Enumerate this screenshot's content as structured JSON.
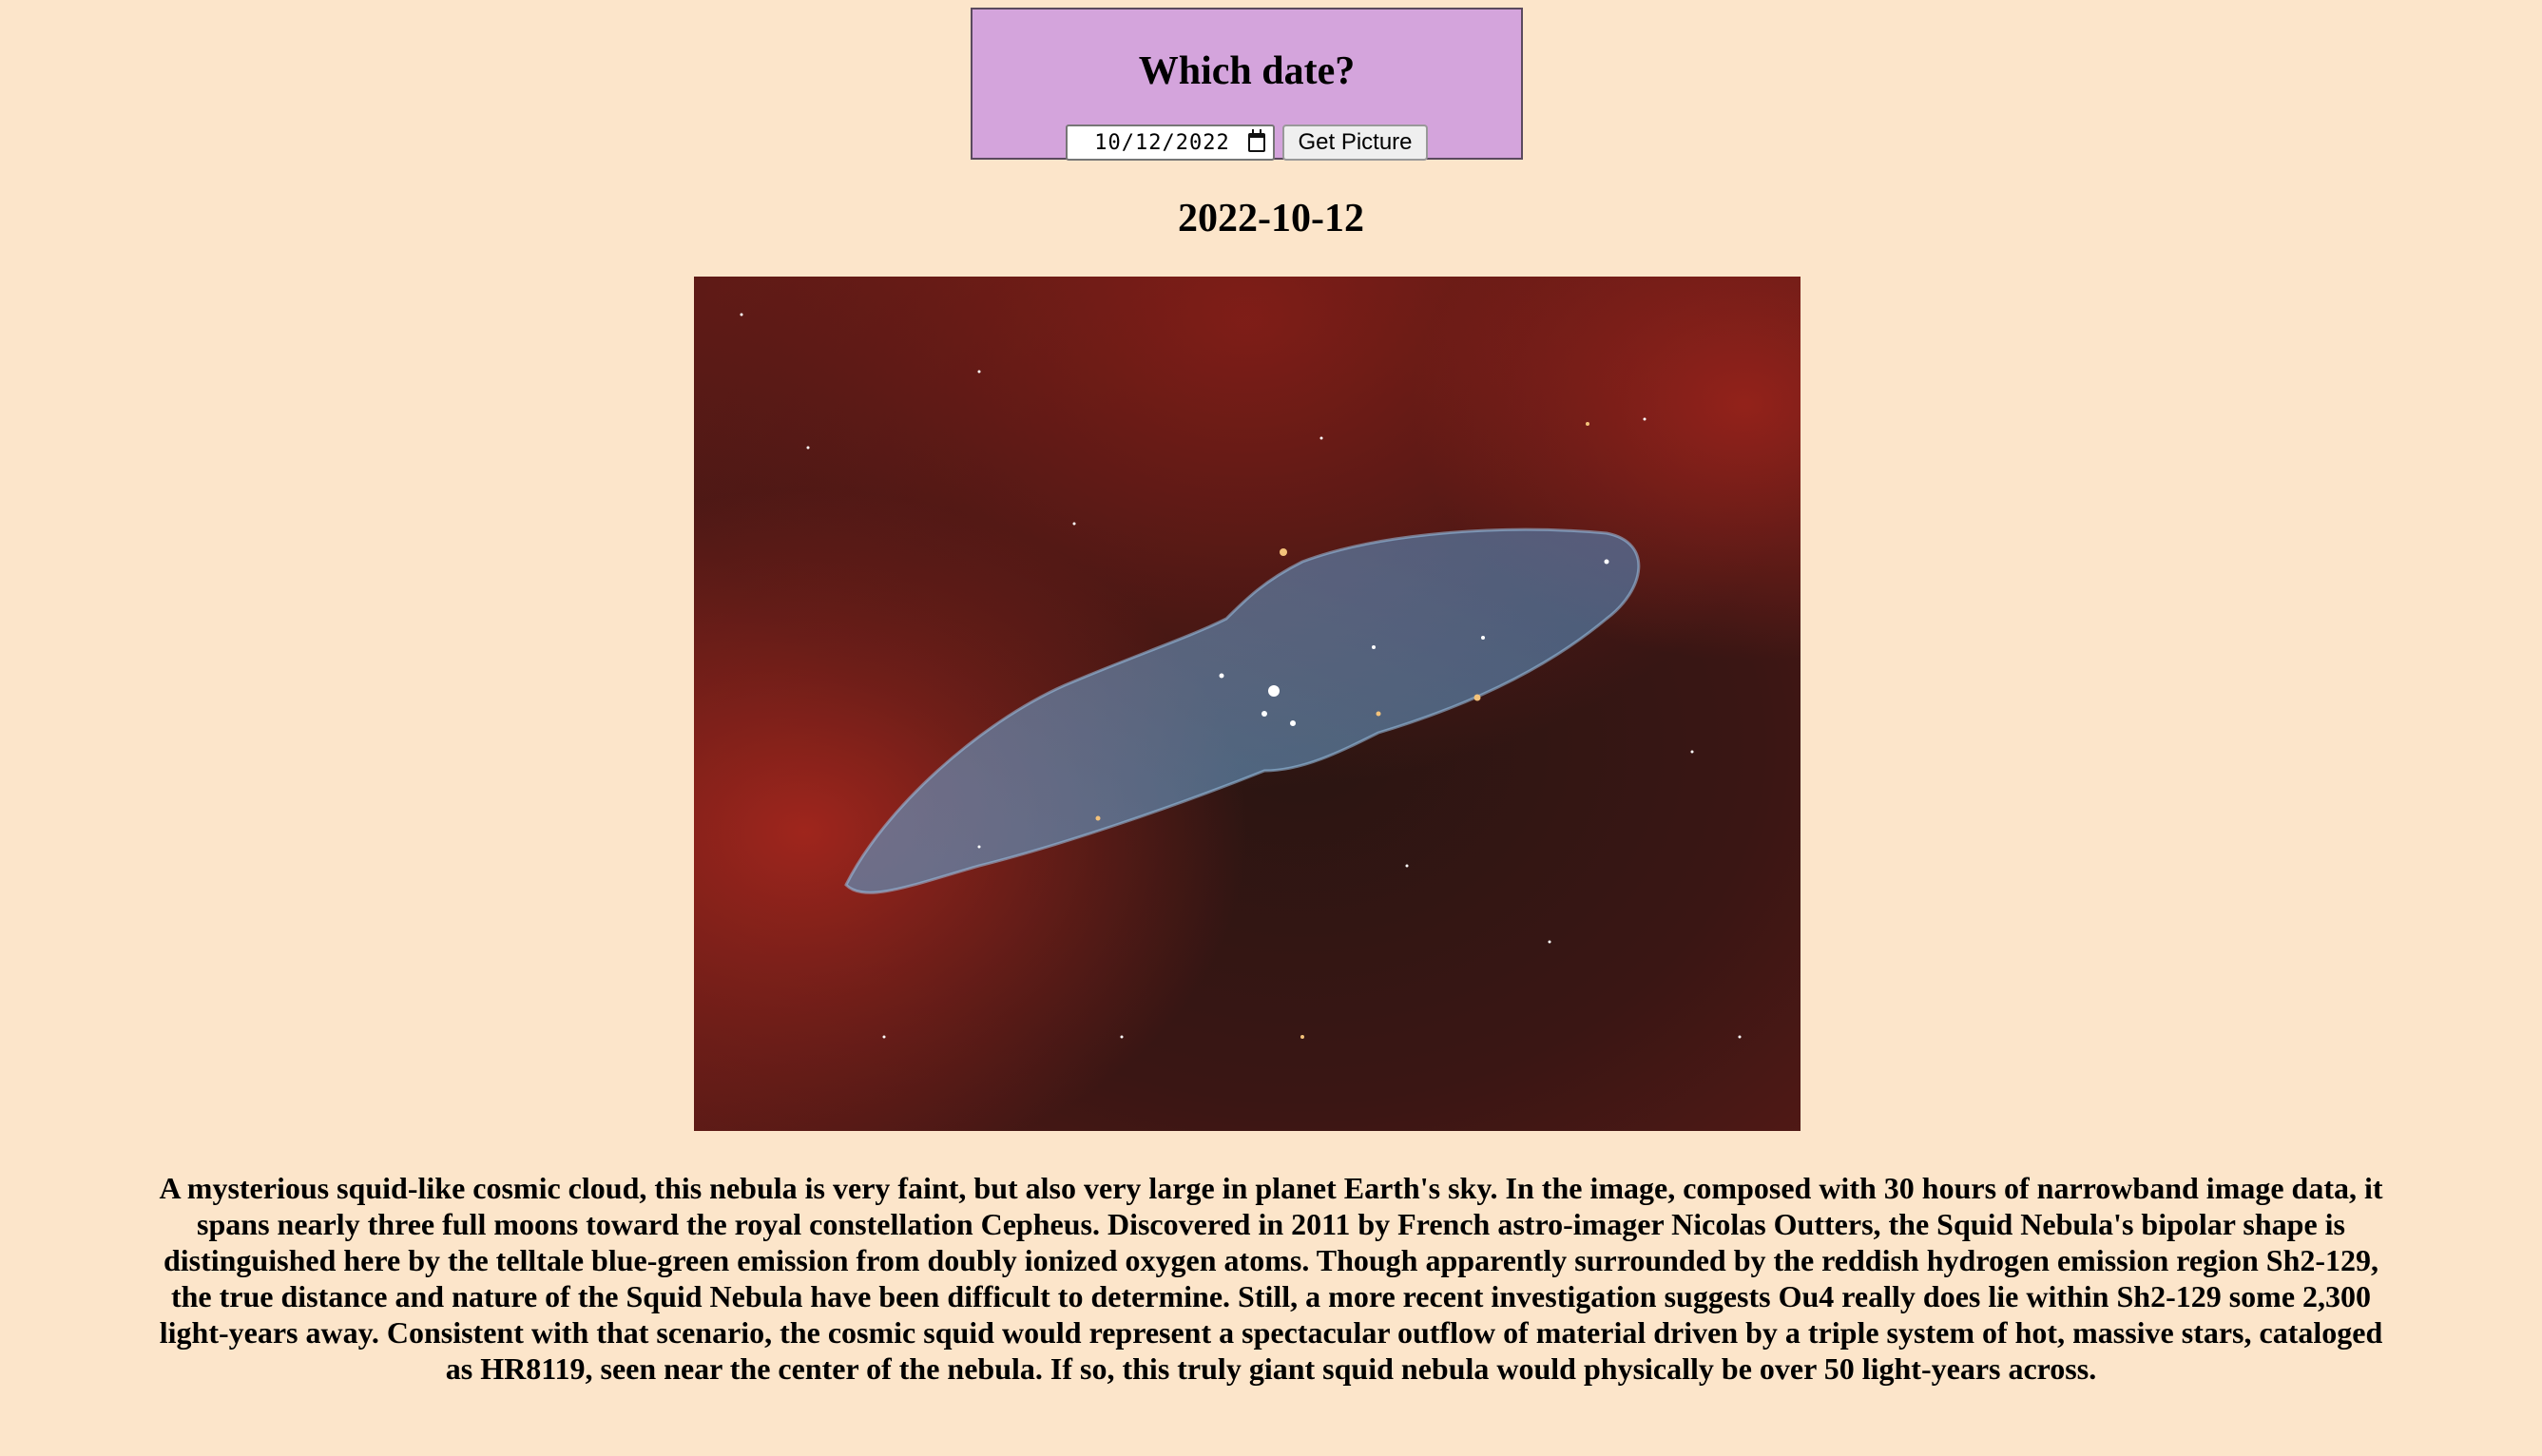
{
  "form": {
    "title": "Which date?",
    "date_value": "10/12/2022",
    "submit_label": "Get Picture"
  },
  "picture": {
    "date": "2022-10-12",
    "explanation": "A mysterious squid-like cosmic cloud, this nebula is very faint, but also very large in planet Earth's sky. In the image, composed with 30 hours of narrowband image data, it spans nearly three full moons toward the royal constellation Cepheus. Discovered in 2011 by French astro-imager Nicolas Outters, the Squid Nebula's bipolar shape is distinguished here by the telltale blue-green emission from doubly ionized oxygen atoms. Though apparently surrounded by the reddish hydrogen emission region Sh2-129, the true distance and nature of the Squid Nebula have been difficult to determine. Still, a more recent investigation suggests Ou4 really does lie within Sh2-129 some 2,300 light-years away. Consistent with that scenario, the cosmic squid would represent a spectacular outflow of material driven by a triple system of hot, massive stars, cataloged as HR8119, seen near the center of the nebula. If so, this truly giant squid nebula would physically be over 50 light-years across."
  },
  "colors": {
    "page_background": "#fce5ca",
    "form_background": "#d4a4dc"
  },
  "icons": {
    "date_picker": "calendar-icon"
  }
}
